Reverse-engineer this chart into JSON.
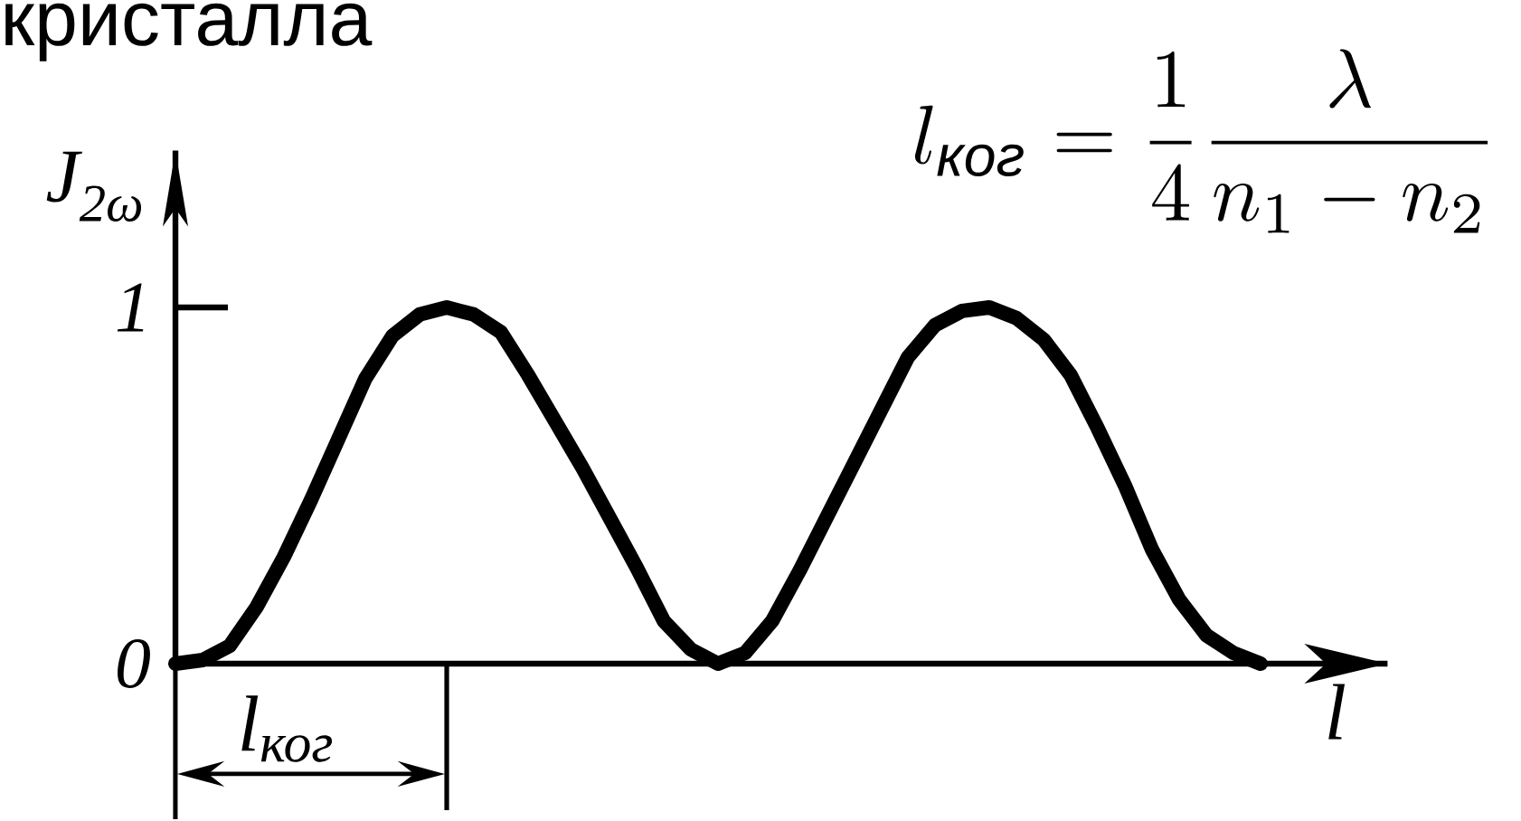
{
  "chart_data": {
    "type": "line",
    "title": "кристалла",
    "ylabel": "J$_{2ω}$",
    "xlabel": "l",
    "annotations": [
      "l_{\\textit{ког}} = \\frac{1}{4}\\frac{\\lambda}{n_1 - n_2}",
      "l$_{ког}$"
    ],
    "categories": [
      null,
      null,
      null,
      null,
      null,
      null,
      null,
      null,
      null,
      null,
      null,
      null,
      null,
      null,
      null,
      null,
      null,
      null,
      null,
      null,
      null,
      null,
      null,
      null,
      null,
      null,
      null,
      null,
      null,
      null,
      null,
      null,
      null,
      null,
      null,
      null,
      null,
      null,
      null,
      null,
      null
    ],
    "series": [
      {
        "color": "#000000",
        "values": [
          0,
          0.01,
          0.05,
          0.16,
          0.3,
          0.46,
          0.63,
          0.8,
          0.92,
          0.98,
          1.0,
          0.98,
          0.93,
          0.81,
          0.68,
          0.55,
          0.41,
          0.27,
          0.12,
          0.04,
          0,
          0.03,
          0.12,
          0.26,
          0.41,
          0.56,
          0.71,
          0.86,
          0.95,
          0.99,
          1.0,
          0.97,
          0.91,
          0.81,
          0.66,
          0.5,
          0.32,
          0.18,
          0.08,
          0.03,
          0
        ]
      }
    ],
    "ylim": [
      0,
      1.44
    ],
    "yticks": [
      0,
      1
    ],
    "tick_labels": "y",
    "line_style": "solid"
  }
}
